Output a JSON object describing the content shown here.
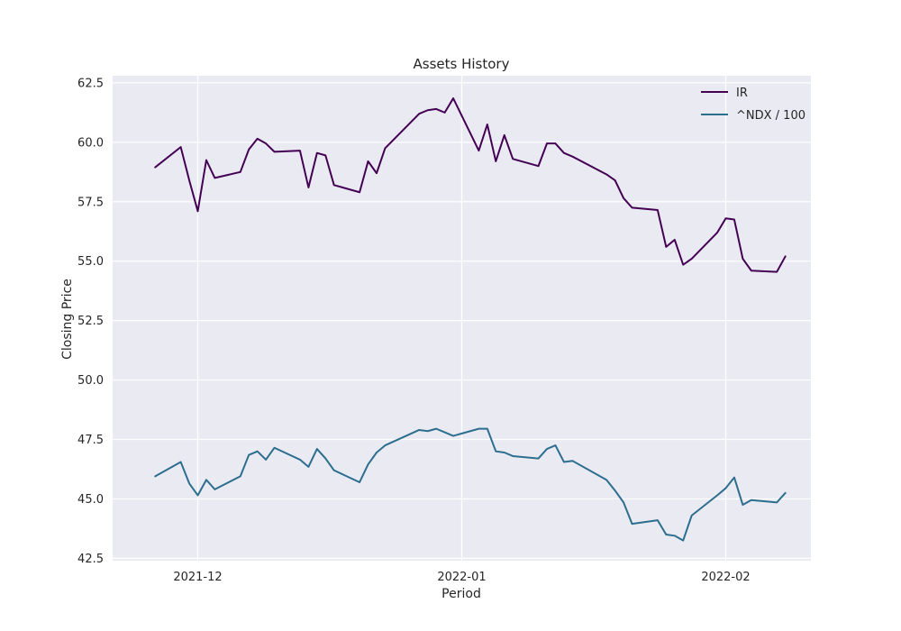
{
  "chart_data": {
    "type": "line",
    "title": "Assets History",
    "xlabel": "Period",
    "ylabel": "Closing Price",
    "x_ticks": [
      "2021-12-01",
      "2022-01-01",
      "2022-02-01"
    ],
    "x_tick_labels": [
      "2021-12",
      "2022-01",
      "2022-02"
    ],
    "y_ticks": [
      42.5,
      45.0,
      47.5,
      50.0,
      52.5,
      55.0,
      57.5,
      60.0,
      62.5
    ],
    "y_tick_labels": [
      "42.5",
      "45.0",
      "47.5",
      "50.0",
      "52.5",
      "55.0",
      "57.5",
      "60.0",
      "62.5"
    ],
    "xlim": [
      "2021-11-21",
      "2022-02-11"
    ],
    "ylim": [
      42.4,
      62.8
    ],
    "grid": true,
    "legend_position": "top-right",
    "series": [
      {
        "name": "IR",
        "color": "#440154",
        "points": [
          [
            "2021-11-26",
            58.95
          ],
          [
            "2021-11-29",
            59.8
          ],
          [
            "2021-11-30",
            58.4
          ],
          [
            "2021-12-01",
            57.1
          ],
          [
            "2021-12-02",
            59.25
          ],
          [
            "2021-12-03",
            58.5
          ],
          [
            "2021-12-06",
            58.75
          ],
          [
            "2021-12-07",
            59.7
          ],
          [
            "2021-12-08",
            60.15
          ],
          [
            "2021-12-09",
            59.95
          ],
          [
            "2021-12-10",
            59.6
          ],
          [
            "2021-12-13",
            59.65
          ],
          [
            "2021-12-14",
            58.1
          ],
          [
            "2021-12-15",
            59.55
          ],
          [
            "2021-12-16",
            59.45
          ],
          [
            "2021-12-17",
            58.2
          ],
          [
            "2021-12-20",
            57.9
          ],
          [
            "2021-12-21",
            59.2
          ],
          [
            "2021-12-22",
            58.7
          ],
          [
            "2021-12-23",
            59.75
          ],
          [
            "2021-12-27",
            61.2
          ],
          [
            "2021-12-28",
            61.35
          ],
          [
            "2021-12-29",
            61.4
          ],
          [
            "2021-12-30",
            61.25
          ],
          [
            "2021-12-31",
            61.85
          ],
          [
            "2022-01-03",
            59.65
          ],
          [
            "2022-01-04",
            60.75
          ],
          [
            "2022-01-05",
            59.2
          ],
          [
            "2022-01-06",
            60.3
          ],
          [
            "2022-01-07",
            59.3
          ],
          [
            "2022-01-10",
            59.0
          ],
          [
            "2022-01-11",
            59.95
          ],
          [
            "2022-01-12",
            59.95
          ],
          [
            "2022-01-13",
            59.55
          ],
          [
            "2022-01-14",
            59.4
          ],
          [
            "2022-01-18",
            58.65
          ],
          [
            "2022-01-19",
            58.4
          ],
          [
            "2022-01-20",
            57.65
          ],
          [
            "2022-01-21",
            57.25
          ],
          [
            "2022-01-24",
            57.15
          ],
          [
            "2022-01-25",
            55.6
          ],
          [
            "2022-01-26",
            55.9
          ],
          [
            "2022-01-27",
            54.85
          ],
          [
            "2022-01-28",
            55.1
          ],
          [
            "2022-01-31",
            56.2
          ],
          [
            "2022-02-01",
            56.8
          ],
          [
            "2022-02-02",
            56.75
          ],
          [
            "2022-02-03",
            55.1
          ],
          [
            "2022-02-04",
            54.6
          ],
          [
            "2022-02-07",
            54.55
          ],
          [
            "2022-02-08",
            55.2
          ]
        ]
      },
      {
        "name": "^NDX / 100",
        "color": "#2c6e8e",
        "points": [
          [
            "2021-11-26",
            45.95
          ],
          [
            "2021-11-29",
            46.55
          ],
          [
            "2021-11-30",
            45.65
          ],
          [
            "2021-12-01",
            45.15
          ],
          [
            "2021-12-02",
            45.8
          ],
          [
            "2021-12-03",
            45.4
          ],
          [
            "2021-12-06",
            45.95
          ],
          [
            "2021-12-07",
            46.85
          ],
          [
            "2021-12-08",
            47.0
          ],
          [
            "2021-12-09",
            46.65
          ],
          [
            "2021-12-10",
            47.15
          ],
          [
            "2021-12-13",
            46.65
          ],
          [
            "2021-12-14",
            46.35
          ],
          [
            "2021-12-15",
            47.1
          ],
          [
            "2021-12-16",
            46.7
          ],
          [
            "2021-12-17",
            46.2
          ],
          [
            "2021-12-20",
            45.7
          ],
          [
            "2021-12-21",
            46.45
          ],
          [
            "2021-12-22",
            46.95
          ],
          [
            "2021-12-23",
            47.25
          ],
          [
            "2021-12-27",
            47.9
          ],
          [
            "2021-12-28",
            47.85
          ],
          [
            "2021-12-29",
            47.95
          ],
          [
            "2021-12-30",
            47.8
          ],
          [
            "2021-12-31",
            47.65
          ],
          [
            "2022-01-03",
            47.95
          ],
          [
            "2022-01-04",
            47.95
          ],
          [
            "2022-01-05",
            47.0
          ],
          [
            "2022-01-06",
            46.95
          ],
          [
            "2022-01-07",
            46.8
          ],
          [
            "2022-01-10",
            46.7
          ],
          [
            "2022-01-11",
            47.1
          ],
          [
            "2022-01-12",
            47.25
          ],
          [
            "2022-01-13",
            46.55
          ],
          [
            "2022-01-14",
            46.6
          ],
          [
            "2022-01-18",
            45.8
          ],
          [
            "2022-01-19",
            45.35
          ],
          [
            "2022-01-20",
            44.85
          ],
          [
            "2022-01-21",
            43.95
          ],
          [
            "2022-01-24",
            44.1
          ],
          [
            "2022-01-25",
            43.5
          ],
          [
            "2022-01-26",
            43.45
          ],
          [
            "2022-01-27",
            43.25
          ],
          [
            "2022-01-28",
            44.3
          ],
          [
            "2022-01-31",
            45.15
          ],
          [
            "2022-02-01",
            45.45
          ],
          [
            "2022-02-02",
            45.9
          ],
          [
            "2022-02-03",
            44.75
          ],
          [
            "2022-02-04",
            44.95
          ],
          [
            "2022-02-07",
            44.85
          ],
          [
            "2022-02-08",
            45.25
          ]
        ]
      }
    ]
  }
}
